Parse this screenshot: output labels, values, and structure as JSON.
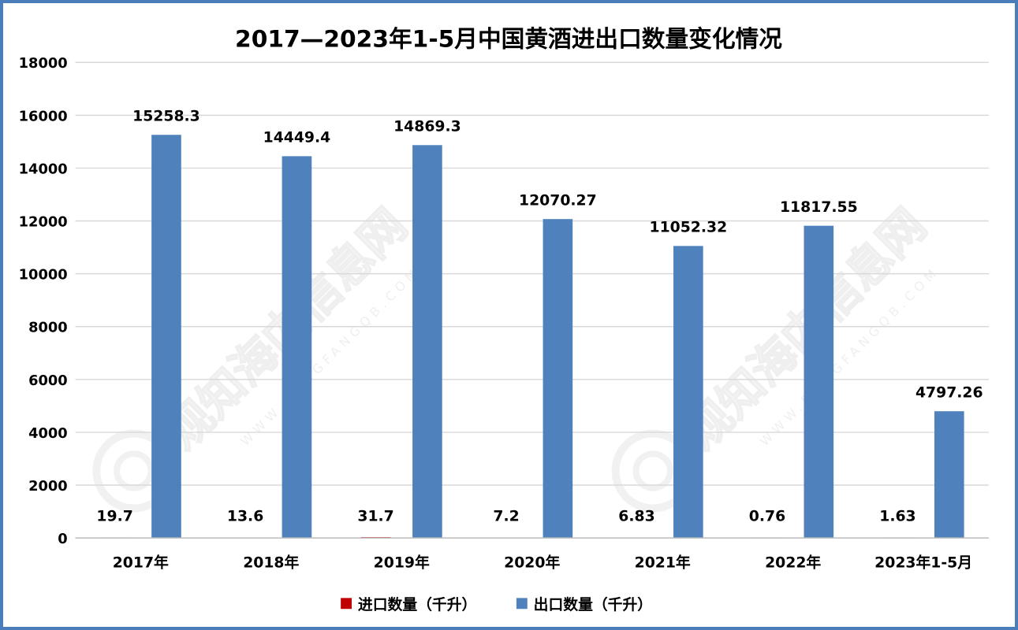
{
  "chart_data": {
    "type": "bar",
    "title": "2017—2023年1-5月中国黄酒进出口数量变化情况",
    "categories": [
      "2017年",
      "2018年",
      "2019年",
      "2020年",
      "2021年",
      "2022年",
      "2023年1-5月"
    ],
    "series": [
      {
        "name": "进口数量（千升）",
        "color": "#c00000",
        "values": [
          19.7,
          13.6,
          31.7,
          7.2,
          6.83,
          0.76,
          1.63
        ],
        "labels": [
          "19.7",
          "13.6",
          "31.7",
          "7.2",
          "6.83",
          "0.76",
          "1.63"
        ]
      },
      {
        "name": "出口数量（千升）",
        "color": "#4f81bd",
        "values": [
          15258.3,
          14449.4,
          14869.3,
          12070.27,
          11052.32,
          11817.55,
          4797.26
        ],
        "labels": [
          "15258.3",
          "14449.4",
          "14869.3",
          "12070.27",
          "11052.32",
          "11817.55",
          "4797.26"
        ]
      }
    ],
    "ylim": [
      0,
      18000
    ],
    "yticks": [
      "0",
      "2000",
      "4000",
      "6000",
      "8000",
      "10000",
      "12000",
      "14000",
      "16000",
      "18000"
    ],
    "grid": true,
    "legend_position": "bottom",
    "watermark": "观知海内信息网 WWW.DONGFANGQB.COM"
  }
}
